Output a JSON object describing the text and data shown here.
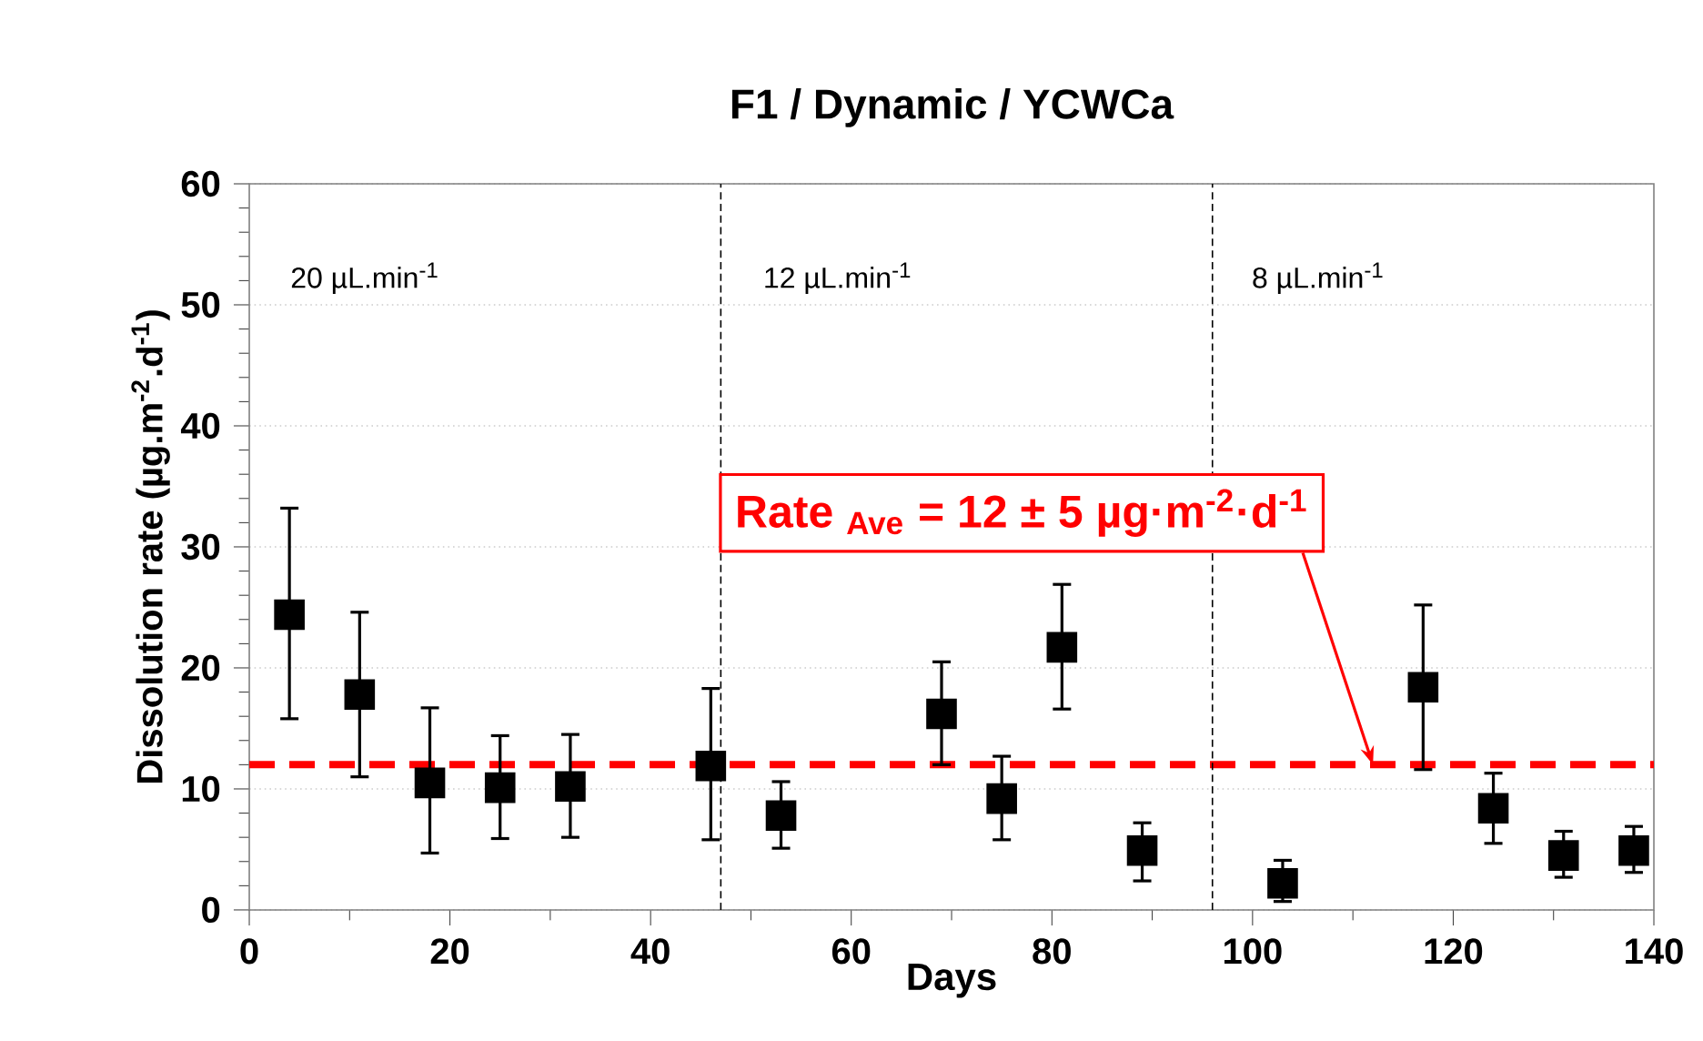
{
  "chart_data": {
    "type": "scatter",
    "title": "F1 / Dynamic /  YCWCa",
    "xlabel": "Days",
    "ylabel": "Dissolution rate (µg.m$^{-2}$.d$^{-1}$)",
    "x": [
      4,
      11,
      18,
      25,
      32,
      46,
      53,
      69,
      75,
      81,
      89,
      103,
      117,
      124,
      131,
      138
    ],
    "series": [
      {
        "color": "#000000",
        "values": [
          24.4,
          17.8,
          10.5,
          10.1,
          10.2,
          11.9,
          7.8,
          16.2,
          9.2,
          21.7,
          4.9,
          2.2,
          18.4,
          8.4,
          4.5,
          4.9
        ],
        "errors": [
          [
            15.8,
            33.2
          ],
          [
            11.0,
            24.6
          ],
          [
            4.7,
            16.7
          ],
          [
            5.9,
            14.4
          ],
          [
            6.0,
            14.5
          ],
          [
            5.8,
            18.3
          ],
          [
            5.1,
            10.6
          ],
          [
            12.0,
            20.5
          ],
          [
            5.8,
            12.7
          ],
          [
            16.6,
            26.9
          ],
          [
            2.4,
            7.2
          ],
          [
            0.7,
            4.1
          ],
          [
            11.6,
            25.2
          ],
          [
            5.5,
            11.3
          ],
          [
            2.7,
            6.5
          ],
          [
            3.1,
            6.9
          ]
        ]
      }
    ],
    "marker": "square",
    "xlim": [
      0,
      140
    ],
    "xticks": [
      0,
      20,
      40,
      60,
      80,
      100,
      120,
      140
    ],
    "ylim": [
      0,
      60
    ],
    "yticks": [
      0,
      10,
      20,
      30,
      40,
      50,
      60
    ],
    "grid": "y",
    "ref_lines": [
      {
        "axis": "y",
        "value": 12,
        "color": "#ff0000",
        "line_style": "dashed"
      },
      {
        "axis": "x",
        "value": 47,
        "color": "#000000",
        "line_style": "dotted"
      },
      {
        "axis": "x",
        "value": 96,
        "color": "#000000",
        "line_style": "dotted"
      }
    ],
    "annotations": [
      "20 µL.min$^{-1}$",
      "12 µL.min$^{-1}$",
      "8 µL.min$^{-1}$",
      {
        "text": "Rate $_{Ave}$ = 12 ± 5 µg·m$^{-2}$·d$^{-1}$",
        "x": 112,
        "y": 12
      }
    ]
  }
}
